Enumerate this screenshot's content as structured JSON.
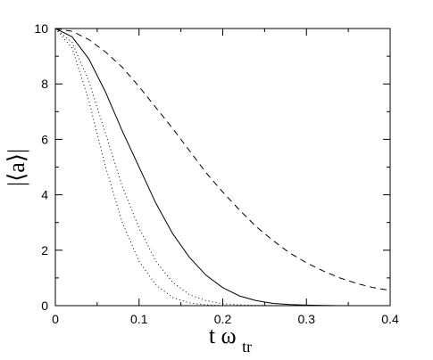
{
  "chart_data": {
    "type": "line",
    "title": "",
    "xlabel": "t ω",
    "xlabel_subscript": "tr",
    "ylabel": "|⟨a⟩|",
    "xlim": [
      0,
      0.4
    ],
    "ylim": [
      0,
      10
    ],
    "x_ticks": [
      "0",
      "0.1",
      "0.2",
      "0.3",
      "0.4"
    ],
    "y_ticks": [
      "0",
      "2",
      "4",
      "6",
      "8",
      "10"
    ],
    "x_tick_values": [
      0,
      0.1,
      0.2,
      0.3,
      0.4
    ],
    "y_tick_values": [
      0,
      2,
      4,
      6,
      8,
      10
    ],
    "grid": false,
    "legend": "none",
    "series": [
      {
        "style": "dashed",
        "x": [
          0,
          0.02,
          0.04,
          0.06,
          0.08,
          0.1,
          0.12,
          0.14,
          0.16,
          0.18,
          0.2,
          0.22,
          0.24,
          0.26,
          0.28,
          0.3,
          0.32,
          0.34,
          0.36,
          0.38,
          0.4
        ],
        "y": [
          10,
          9.9,
          9.6,
          9.15,
          8.6,
          7.9,
          7.15,
          6.4,
          5.6,
          4.8,
          4.1,
          3.45,
          2.85,
          2.35,
          1.9,
          1.55,
          1.25,
          1.0,
          0.8,
          0.65,
          0.55
        ]
      },
      {
        "style": "solid",
        "x": [
          0,
          0.02,
          0.04,
          0.06,
          0.08,
          0.1,
          0.12,
          0.14,
          0.16,
          0.18,
          0.2,
          0.22,
          0.24,
          0.26,
          0.28,
          0.3,
          0.32,
          0.34,
          0.36,
          0.38
        ],
        "y": [
          10,
          9.7,
          8.9,
          7.7,
          6.3,
          5.0,
          3.7,
          2.6,
          1.75,
          1.1,
          0.65,
          0.35,
          0.18,
          0.08,
          0.04,
          0.02,
          0.01,
          0.0,
          0.0,
          0.0
        ]
      },
      {
        "style": "dotted",
        "x": [
          0,
          0.02,
          0.04,
          0.06,
          0.08,
          0.1,
          0.12,
          0.14,
          0.16,
          0.18,
          0.2,
          0.22,
          0.24,
          0.26
        ],
        "y": [
          10,
          9.5,
          8.1,
          6.2,
          4.3,
          2.8,
          1.6,
          0.85,
          0.4,
          0.18,
          0.07,
          0.03,
          0.01,
          0.0
        ]
      },
      {
        "style": "dotted",
        "x": [
          0,
          0.02,
          0.04,
          0.06,
          0.08,
          0.1,
          0.12,
          0.14,
          0.16,
          0.18,
          0.2
        ],
        "y": [
          10,
          9.3,
          7.4,
          5.0,
          3.0,
          1.6,
          0.75,
          0.3,
          0.1,
          0.03,
          0.0
        ]
      }
    ]
  }
}
